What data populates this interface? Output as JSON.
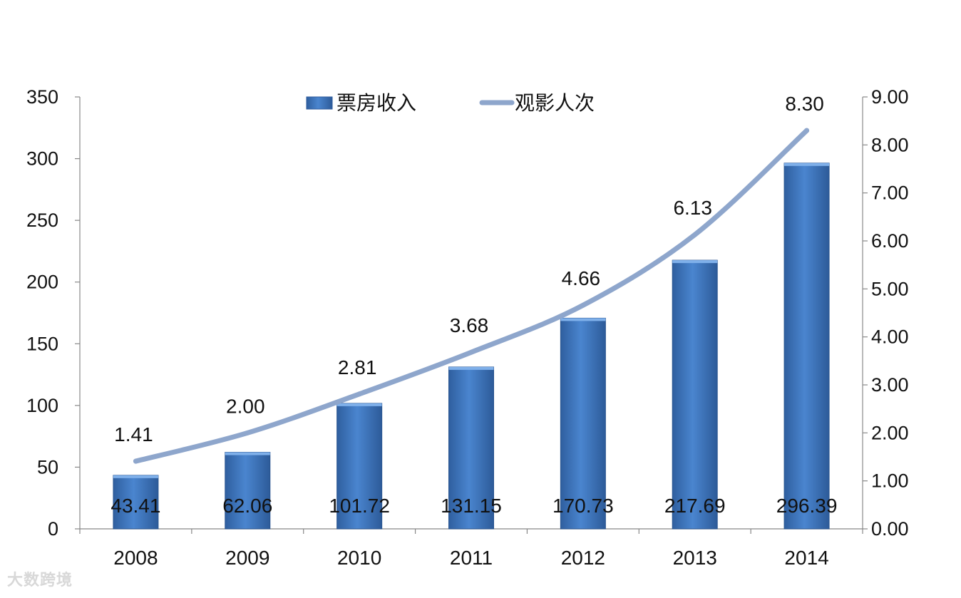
{
  "chart_data": {
    "type": "bar",
    "categories": [
      "2008",
      "2009",
      "2010",
      "2011",
      "2012",
      "2013",
      "2014"
    ],
    "series": [
      {
        "name": "票房收入",
        "type": "bar",
        "axis": "left",
        "values": [
          43.41,
          62.06,
          101.72,
          131.15,
          170.73,
          217.69,
          296.39
        ],
        "labels": [
          "43.41",
          "62.06",
          "101.72",
          "131.15",
          "170.73",
          "217.69",
          "296.39"
        ]
      },
      {
        "name": "观影人次",
        "type": "line",
        "axis": "right",
        "values": [
          1.41,
          2.0,
          2.81,
          3.68,
          4.66,
          6.13,
          8.3
        ],
        "labels": [
          "1.41",
          "2.00",
          "2.81",
          "3.68",
          "4.66",
          "6.13",
          "8.30"
        ]
      }
    ],
    "y_left": {
      "min": 0,
      "max": 350,
      "ticks": [
        "0",
        "50",
        "100",
        "150",
        "200",
        "250",
        "300",
        "350"
      ]
    },
    "y_right": {
      "min": 0,
      "max": 9,
      "ticks": [
        "0.00",
        "1.00",
        "2.00",
        "3.00",
        "4.00",
        "5.00",
        "6.00",
        "7.00",
        "8.00",
        "9.00"
      ]
    },
    "legend": {
      "position": "top"
    },
    "grid": false,
    "colors": {
      "bar_top": "#4a86d0",
      "bar_bottom": "#2c5a9c",
      "line": "#8ea6cc",
      "axis": "#888888"
    }
  },
  "watermark": {
    "text": "大数跨境"
  }
}
